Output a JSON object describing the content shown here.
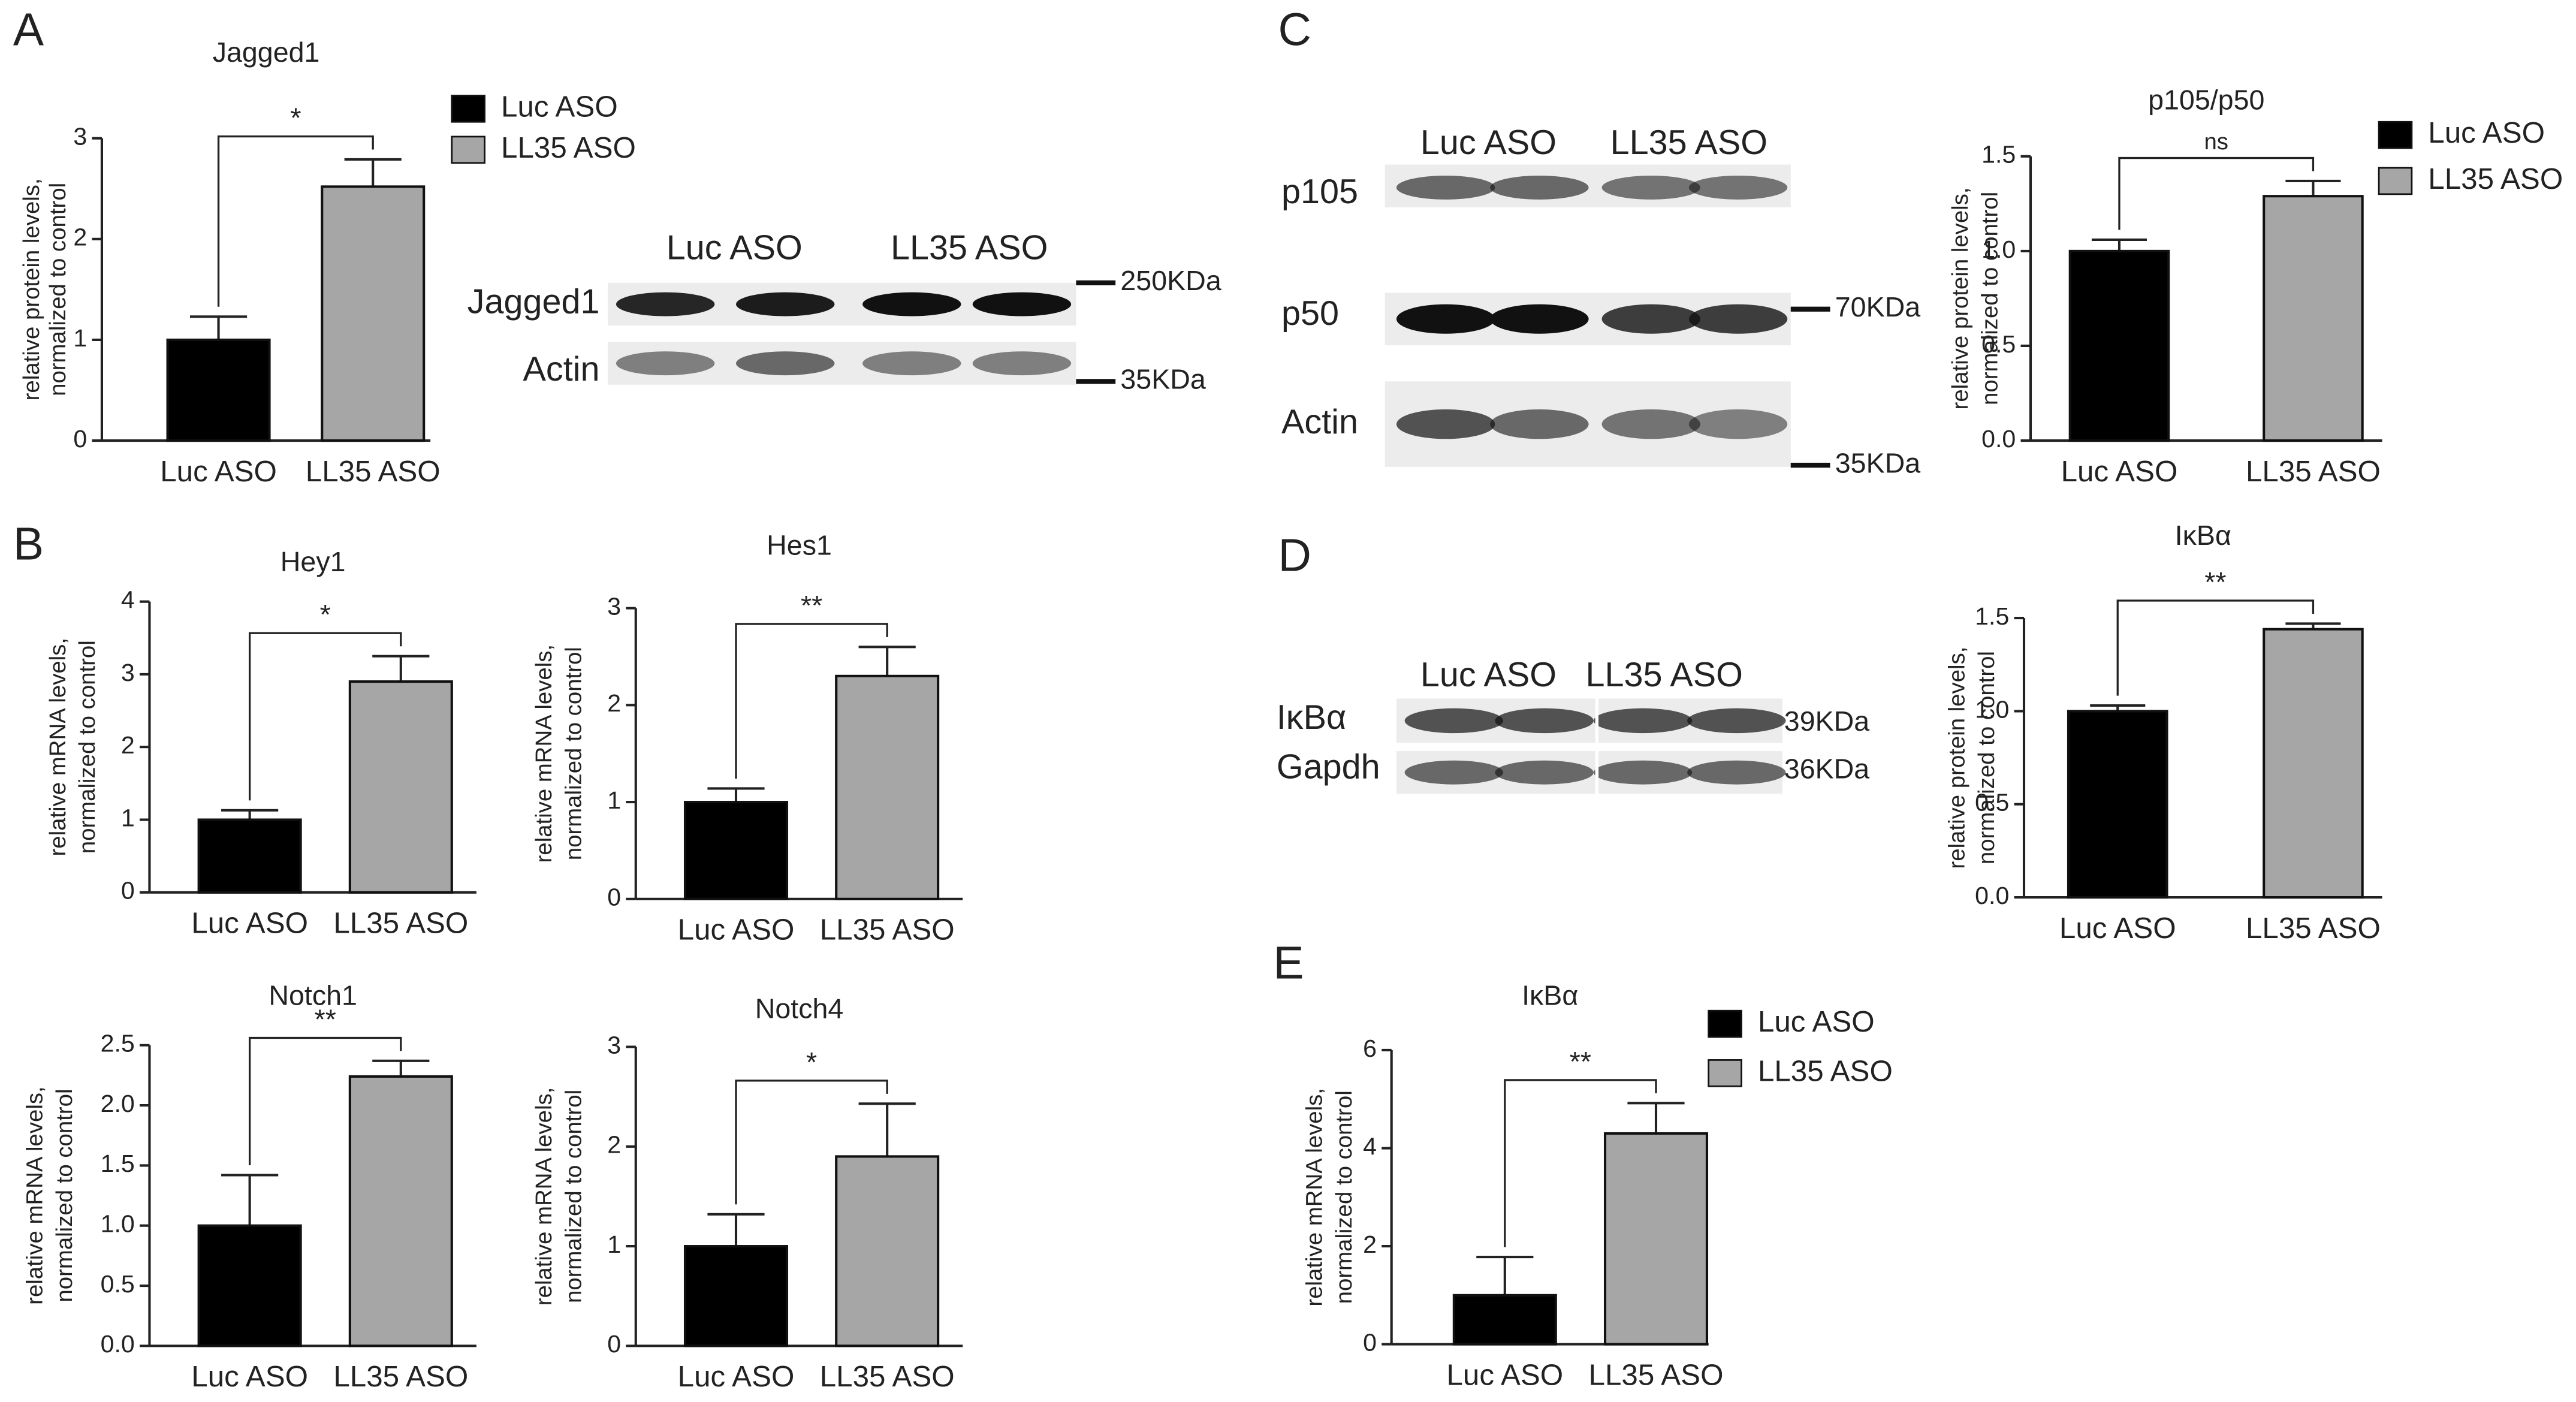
{
  "panel_labels": [
    "A",
    "B",
    "C",
    "D",
    "E"
  ],
  "chart_data": [
    {
      "type": "bar",
      "title": "Jagged1",
      "ylabel": [
        "relative protein levels,",
        "normalized to control"
      ],
      "categories": [
        "Luc ASO",
        "LL35 ASO"
      ],
      "values": [
        1,
        2.52
      ],
      "errors": [
        0.23,
        0.27
      ],
      "colors": [
        "#000000",
        "#a6a6a6"
      ],
      "annotation": "*",
      "ylim": [
        0,
        3
      ],
      "yticks": [
        0,
        1,
        2,
        3
      ],
      "legend": true
    },
    {
      "type": "bar",
      "title": "Hey1",
      "ylabel": [
        "relative mRNA levels,",
        "normalized to control"
      ],
      "categories": [
        "Luc ASO",
        "LL35 ASO"
      ],
      "values": [
        1,
        2.9
      ],
      "errors": [
        0.13,
        0.35
      ],
      "colors": [
        "#000000",
        "#a6a6a6"
      ],
      "annotation": "*",
      "ylim": [
        0,
        4
      ],
      "yticks": [
        0,
        1,
        2,
        3,
        4
      ],
      "legend": false
    },
    {
      "type": "bar",
      "title": "Hes1",
      "ylabel": [
        "relative mRNA levels,",
        "normalized to control"
      ],
      "categories": [
        "Luc ASO",
        "LL35 ASO"
      ],
      "values": [
        1,
        2.3
      ],
      "errors": [
        0.14,
        0.3
      ],
      "colors": [
        "#000000",
        "#a6a6a6"
      ],
      "annotation": "**",
      "ylim": [
        0,
        3
      ],
      "yticks": [
        0,
        1,
        2,
        3
      ],
      "legend": false
    },
    {
      "type": "bar",
      "title": "Notch1",
      "ylabel": [
        "relative mRNA levels,",
        "normalized to control"
      ],
      "categories": [
        "Luc ASO",
        "LL35 ASO"
      ],
      "values": [
        1,
        2.24
      ],
      "errors": [
        0.42,
        0.13
      ],
      "colors": [
        "#000000",
        "#a6a6a6"
      ],
      "annotation": "**",
      "ylim": [
        0,
        2.5
      ],
      "yticks": [
        {
          "value": 0,
          "label": "0.0"
        },
        0.5,
        {
          "value": 1,
          "label": "1.0"
        },
        1.5,
        {
          "value": 2,
          "label": "2.0"
        },
        2.5
      ],
      "legend": false
    },
    {
      "type": "bar",
      "title": "Notch4",
      "ylabel": [
        "relative mRNA levels,",
        "normalized to control"
      ],
      "categories": [
        "Luc ASO",
        "LL35 ASO"
      ],
      "values": [
        1,
        1.9
      ],
      "errors": [
        0.32,
        0.53
      ],
      "colors": [
        "#000000",
        "#a6a6a6"
      ],
      "annotation": "*",
      "ylim": [
        0,
        3
      ],
      "yticks": [
        0,
        1,
        2,
        3
      ],
      "legend": false
    },
    {
      "type": "bar",
      "title": "p105/p50",
      "ylabel": [
        "relative protein levels,",
        "normalized to control"
      ],
      "categories": [
        "Luc ASO",
        "LL35 ASO"
      ],
      "values": [
        1,
        1.29
      ],
      "errors": [
        0.06,
        0.08
      ],
      "colors": [
        "#000000",
        "#a6a6a6"
      ],
      "annotation": "ns",
      "ylim": [
        0,
        1.5
      ],
      "yticks": [
        {
          "value": 0,
          "label": "0.0"
        },
        0.5,
        {
          "value": 1,
          "label": "1.0"
        },
        1.5
      ],
      "legend": true
    },
    {
      "type": "bar",
      "title": "IκBα",
      "ylabel": [
        "relative protein levels,",
        "normalized to control"
      ],
      "categories": [
        "Luc ASO",
        "LL35 ASO"
      ],
      "values": [
        1,
        1.44
      ],
      "errors": [
        0.03,
        0.03
      ],
      "colors": [
        "#000000",
        "#a6a6a6"
      ],
      "annotation": "**",
      "ylim": [
        0,
        1.5
      ],
      "yticks": [
        {
          "value": 0,
          "label": "0.0"
        },
        0.5,
        {
          "value": 1,
          "label": "1.0"
        },
        1.5
      ],
      "legend": false
    },
    {
      "type": "bar",
      "title": "IκBα",
      "ylabel": [
        "relative mRNA levels,",
        "normalized to control"
      ],
      "categories": [
        "Luc ASO",
        "LL35 ASO"
      ],
      "values": [
        1,
        4.3
      ],
      "errors": [
        0.78,
        0.62
      ],
      "colors": [
        "#000000",
        "#a6a6a6"
      ],
      "annotation": "**",
      "ylim": [
        0,
        6
      ],
      "yticks": [
        0,
        2,
        4,
        6
      ],
      "legend": true
    }
  ],
  "blots": [
    {
      "lanes": [
        "Luc ASO",
        "LL35 ASO"
      ],
      "rows": [
        "Jagged1",
        "Actin"
      ],
      "markers": [
        "250KDa",
        "35KDa"
      ]
    },
    {
      "lanes": [
        "Luc ASO",
        "LL35 ASO"
      ],
      "rows": [
        "p105",
        "p50",
        "Actin"
      ],
      "markers": [
        "70KDa",
        "35KDa"
      ]
    },
    {
      "lanes": [
        "Luc ASO",
        "LL35 ASO"
      ],
      "rows": [
        "IκBα",
        "Gapdh"
      ],
      "markers": [
        "39KDa",
        "36KDa"
      ]
    }
  ]
}
